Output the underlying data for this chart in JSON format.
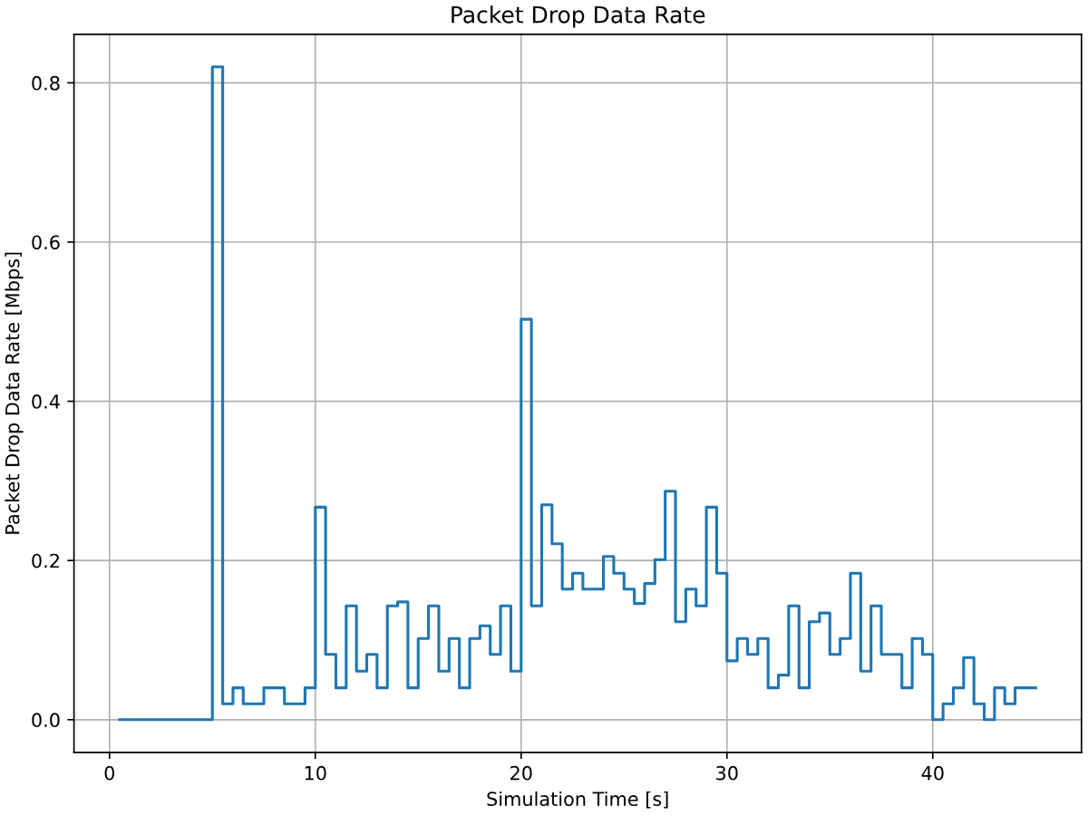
{
  "chart_data": {
    "type": "step",
    "title": "Packet Drop Data Rate",
    "xlabel": "Simulation Time [s]",
    "ylabel": "Packet Drop Data Rate [Mbps]",
    "x": [
      0.5,
      1.0,
      1.5,
      2.0,
      2.5,
      3.0,
      3.5,
      4.0,
      4.5,
      5.0,
      5.5,
      6.0,
      6.5,
      7.0,
      7.5,
      8.0,
      8.5,
      9.0,
      9.5,
      10.0,
      10.5,
      11.0,
      11.5,
      12.0,
      12.5,
      13.0,
      13.5,
      14.0,
      14.5,
      15.0,
      15.5,
      16.0,
      16.5,
      17.0,
      17.5,
      18.0,
      18.5,
      19.0,
      19.5,
      20.0,
      20.5,
      21.0,
      21.5,
      22.0,
      22.5,
      23.0,
      23.5,
      24.0,
      24.5,
      25.0,
      25.5,
      26.0,
      26.5,
      27.0,
      27.5,
      28.0,
      28.5,
      29.0,
      29.5,
      30.0,
      30.5,
      31.0,
      31.5,
      32.0,
      32.5,
      33.0,
      33.5,
      34.0,
      34.5,
      35.0,
      35.5,
      36.0,
      36.5,
      37.0,
      37.5,
      38.0,
      38.5,
      39.0,
      39.5,
      40.0,
      40.5,
      41.0,
      41.5,
      42.0,
      42.5,
      43.0,
      43.5,
      44.0,
      44.5,
      45.0
    ],
    "values": [
      0,
      0,
      0,
      0,
      0,
      0,
      0,
      0,
      0,
      0,
      0.82,
      0.02,
      0.04,
      0.02,
      0.02,
      0.04,
      0.04,
      0.02,
      0.02,
      0.04,
      0.267,
      0.082,
      0.04,
      0.143,
      0.061,
      0.082,
      0.04,
      0.143,
      0.148,
      0.04,
      0.102,
      0.143,
      0.061,
      0.102,
      0.04,
      0.102,
      0.118,
      0.082,
      0.143,
      0.061,
      0.503,
      0.143,
      0.27,
      0.221,
      0.164,
      0.184,
      0.164,
      0.164,
      0.205,
      0.184,
      0.164,
      0.146,
      0.171,
      0.201,
      0.287,
      0.123,
      0.164,
      0.143,
      0.267,
      0.184,
      0.074,
      0.102,
      0.082,
      0.102,
      0.04,
      0.056,
      0.143,
      0.04,
      0.123,
      0.134,
      0.082,
      0.102,
      0.184,
      0.061,
      0.143,
      0.082,
      0.082,
      0.04,
      0.102,
      0.082,
      0,
      0.02,
      0.04,
      0.078,
      0.02,
      0,
      0.04,
      0.02,
      0.04,
      0.04
    ],
    "color": "#1f77b4",
    "xlim": [
      -1.725,
      47.225
    ],
    "ylim": [
      -0.041,
      0.861
    ],
    "xticks": [
      0,
      10,
      20,
      30,
      40
    ],
    "yticks": [
      {
        "value": 0,
        "label": "0.0"
      },
      0.2,
      0.4,
      0.6,
      0.8
    ],
    "grid": true
  }
}
